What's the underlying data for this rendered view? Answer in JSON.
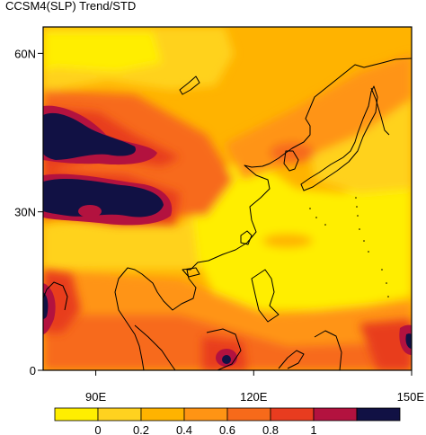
{
  "title": "CCSM4(SLP) Trend/STD",
  "map": {
    "lon_range": [
      80,
      150
    ],
    "lat_range": [
      0,
      65
    ],
    "y_ticks": [
      {
        "lat": 60,
        "label": "60N"
      },
      {
        "lat": 30,
        "label": "30N"
      },
      {
        "lat": 0,
        "label": "0"
      }
    ],
    "x_ticks": [
      {
        "lon": 90,
        "label": "90E"
      },
      {
        "lon": 120,
        "label": "120E"
      },
      {
        "lon": 150,
        "label": "150E"
      }
    ]
  },
  "colorbar": {
    "colors": [
      "#ffee00",
      "#ffd21f",
      "#ffb300",
      "#ff9414",
      "#f76a1a",
      "#e83c1f",
      "#b3123f",
      "#111144"
    ],
    "labels": [
      "0",
      "0.2",
      "0.4",
      "0.6",
      "0.8",
      "1"
    ],
    "label_boundaries": [
      1,
      2,
      3,
      4,
      5,
      6
    ]
  }
}
